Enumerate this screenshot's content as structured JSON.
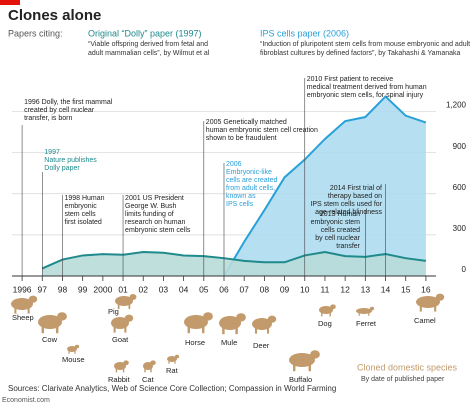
{
  "chart_data": {
    "type": "area",
    "title": "Clones alone",
    "legend_label": "Papers citing:",
    "x": [
      1996,
      1997,
      1998,
      1999,
      2000,
      2001,
      2002,
      2003,
      2004,
      2005,
      2006,
      2007,
      2008,
      2009,
      2010,
      2011,
      2012,
      2013,
      2014,
      2015,
      2016
    ],
    "xlim": [
      1995.5,
      2016.5
    ],
    "xticks": [
      1996,
      {
        "value": 1997,
        "label": "97"
      },
      {
        "value": 1998,
        "label": "98"
      },
      {
        "value": 1999,
        "label": "99"
      },
      2000,
      {
        "value": 2001,
        "label": "01"
      },
      {
        "value": 2002,
        "label": "02"
      },
      {
        "value": 2003,
        "label": "03"
      },
      {
        "value": 2004,
        "label": "04"
      },
      {
        "value": 2005,
        "label": "05"
      },
      {
        "value": 2006,
        "label": "06"
      },
      {
        "value": 2007,
        "label": "07"
      },
      {
        "value": 2008,
        "label": "08"
      },
      {
        "value": 2009,
        "label": "09"
      },
      {
        "value": 2010,
        "label": "10"
      },
      {
        "value": 2011,
        "label": "11"
      },
      {
        "value": 2012,
        "label": "12"
      },
      {
        "value": 2013,
        "label": "13"
      },
      {
        "value": 2014,
        "label": "14"
      },
      {
        "value": 2015,
        "label": "15"
      },
      {
        "value": 2016,
        "label": "16"
      }
    ],
    "ylim": [
      0,
      1350
    ],
    "yticks": [
      0,
      300,
      600,
      900,
      {
        "value": 1200,
        "label": "1,200"
      }
    ],
    "grid": true,
    "series": [
      {
        "name": "IPS cells paper (2006)",
        "color": "#2aa0d8",
        "fill": "#aedbf0",
        "description": [
          "“Induction of pluripotent stem cells from mouse embryonic and adult",
          "fibroblast cultures by defined factors”, by Takahashi & Yamanaka"
        ],
        "values": [
          null,
          null,
          null,
          null,
          null,
          null,
          null,
          null,
          null,
          null,
          0,
          250,
          480,
          720,
          850,
          1000,
          1130,
          1160,
          1310,
          1170,
          1120
        ]
      },
      {
        "name": "Original “Dolly” paper (1997)",
        "color": "#1e8a8c",
        "fill": "#b8dcd9",
        "description": [
          "“Viable offspring derived from fetal and",
          "adult mammalian cells”, by Wilmut et al"
        ],
        "values": [
          null,
          55,
          120,
          150,
          160,
          155,
          175,
          170,
          150,
          145,
          130,
          110,
          100,
          100,
          150,
          175,
          145,
          140,
          160,
          130,
          110
        ]
      }
    ],
    "annotations": [
      {
        "year": 1996,
        "color": "#222222",
        "lines": [
          "1996 Dolly, the first mammal",
          "created by cell nuclear",
          "transfer, is born"
        ]
      },
      {
        "year": 1997,
        "color": "#1e8a8c",
        "lines": [
          "1997",
          "Nature publishes",
          "Dolly paper"
        ]
      },
      {
        "year": 1998,
        "color": "#222222",
        "lines": [
          "1998 Human",
          "embryonic",
          "stem cells",
          "first isolated"
        ]
      },
      {
        "year": 2001,
        "color": "#222222",
        "lines": [
          "2001 US President",
          "George W. Bush",
          "limits funding of",
          "research on human",
          "embryonic stem cells"
        ]
      },
      {
        "year": 2005,
        "color": "#222222",
        "lines": [
          "2005 Genetically matched",
          "human embryonic stem cell creation",
          "shown to be fraudulent"
        ]
      },
      {
        "year": 2006,
        "color": "#2aa0d8",
        "lines": [
          "2006",
          "Embryonic-like",
          "cells are created",
          "from adult cells,",
          "known as",
          "IPS cells"
        ]
      },
      {
        "year": 2010,
        "color": "#222222",
        "lines": [
          "2010 First patient to receive",
          "medical treatment derived from human",
          "embryonic stem cells, for spinal injury"
        ]
      },
      {
        "year": 2014,
        "color": "#222222",
        "lines": [
          "2014 First trial of",
          "therapy  based on",
          "IPS stem cells used for",
          "age-related blindness"
        ]
      },
      {
        "year": 2013,
        "color": "#222222",
        "lines": [
          "2013 Human",
          "embryonic stem",
          "cells created",
          "by cell nuclear",
          "transfer"
        ]
      }
    ],
    "species": {
      "title": "Cloned domestic species",
      "subtitle": "By date of published paper",
      "color": "#c29a6b",
      "names": [
        "Sheep",
        "Cow",
        "Mouse",
        "Goat",
        "Pig",
        "Rabbit",
        "Cat",
        "Rat",
        "Horse",
        "Mule",
        "Deer",
        "Buffalo",
        "Dog",
        "Ferret",
        "Camel"
      ]
    },
    "source": "Sources: Clarivate Analytics, Web of Science Core Collection; Compassion in World Farming",
    "credit": "Economist.com"
  }
}
